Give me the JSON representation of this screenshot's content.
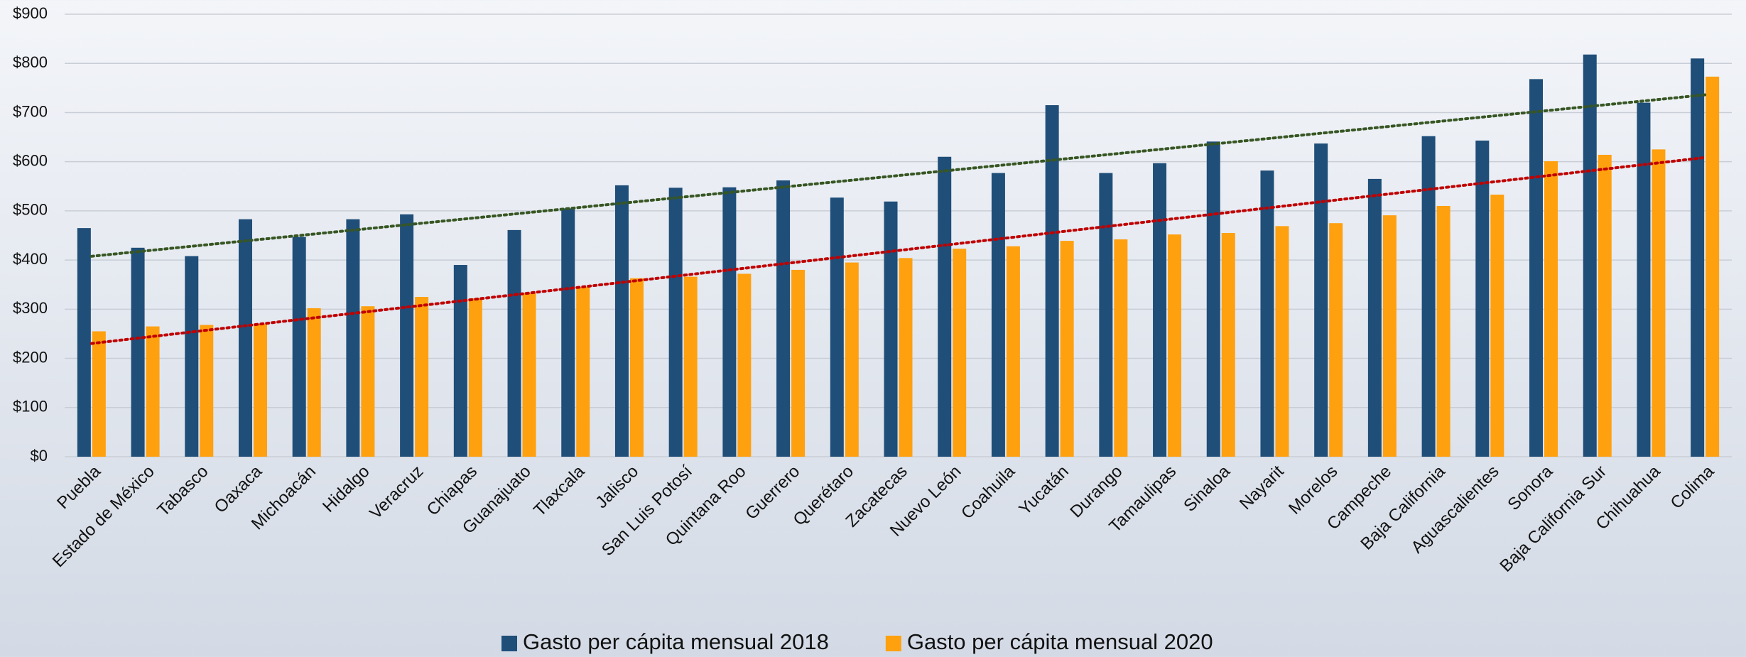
{
  "chart_data": {
    "type": "bar",
    "categories": [
      "Puebla",
      "Estado de México",
      "Tabasco",
      "Oaxaca",
      "Michoacán",
      "Hidalgo",
      "Veracruz",
      "Chiapas",
      "Guanajuato",
      "Tlaxcala",
      "Jalisco",
      "San Luis Potosí",
      "Quintana Roo",
      "Guerrero",
      "Querétaro",
      "Zacatecas",
      "Nuevo León",
      "Coahuila",
      "Yucatán",
      "Durango",
      "Tamaulipas",
      "Sinaloa",
      "Nayarit",
      "Morelos",
      "Campeche",
      "Baja California",
      "Aguascalientes",
      "Sonora",
      "Baja California Sur",
      "Chihuahua",
      "Colima"
    ],
    "series": [
      {
        "name": "Gasto per cápita mensual 2018",
        "color": "#1f4e79",
        "trendline": "linear",
        "trendline_color": "#375623",
        "values": [
          465,
          425,
          408,
          483,
          447,
          483,
          493,
          390,
          461,
          505,
          552,
          547,
          548,
          562,
          527,
          519,
          610,
          577,
          715,
          577,
          597,
          641,
          582,
          637,
          565,
          652,
          643,
          768,
          818,
          720,
          810
        ]
      },
      {
        "name": "Gasto per cápita mensual 2020",
        "color": "#ffa00f",
        "trendline": "linear",
        "trendline_color": "#c00000",
        "values": [
          255,
          265,
          268,
          270,
          302,
          306,
          325,
          322,
          333,
          345,
          363,
          366,
          372,
          380,
          395,
          404,
          423,
          428,
          439,
          442,
          452,
          455,
          469,
          475,
          491,
          510,
          533,
          601,
          614,
          625,
          773
        ]
      }
    ],
    "ylim": [
      0,
      900
    ],
    "yticks": [
      {
        "value": 0,
        "label": "$0"
      },
      {
        "value": 100,
        "label": "$100"
      },
      {
        "value": 200,
        "label": "$200"
      },
      {
        "value": 300,
        "label": "$300"
      },
      {
        "value": 400,
        "label": "$400"
      },
      {
        "value": 500,
        "label": "$500"
      },
      {
        "value": 600,
        "label": "$600"
      },
      {
        "value": 700,
        "label": "$700"
      },
      {
        "value": 800,
        "label": "$800"
      },
      {
        "value": 900,
        "label": "$900"
      }
    ],
    "grid": true,
    "legend": "bottom"
  }
}
